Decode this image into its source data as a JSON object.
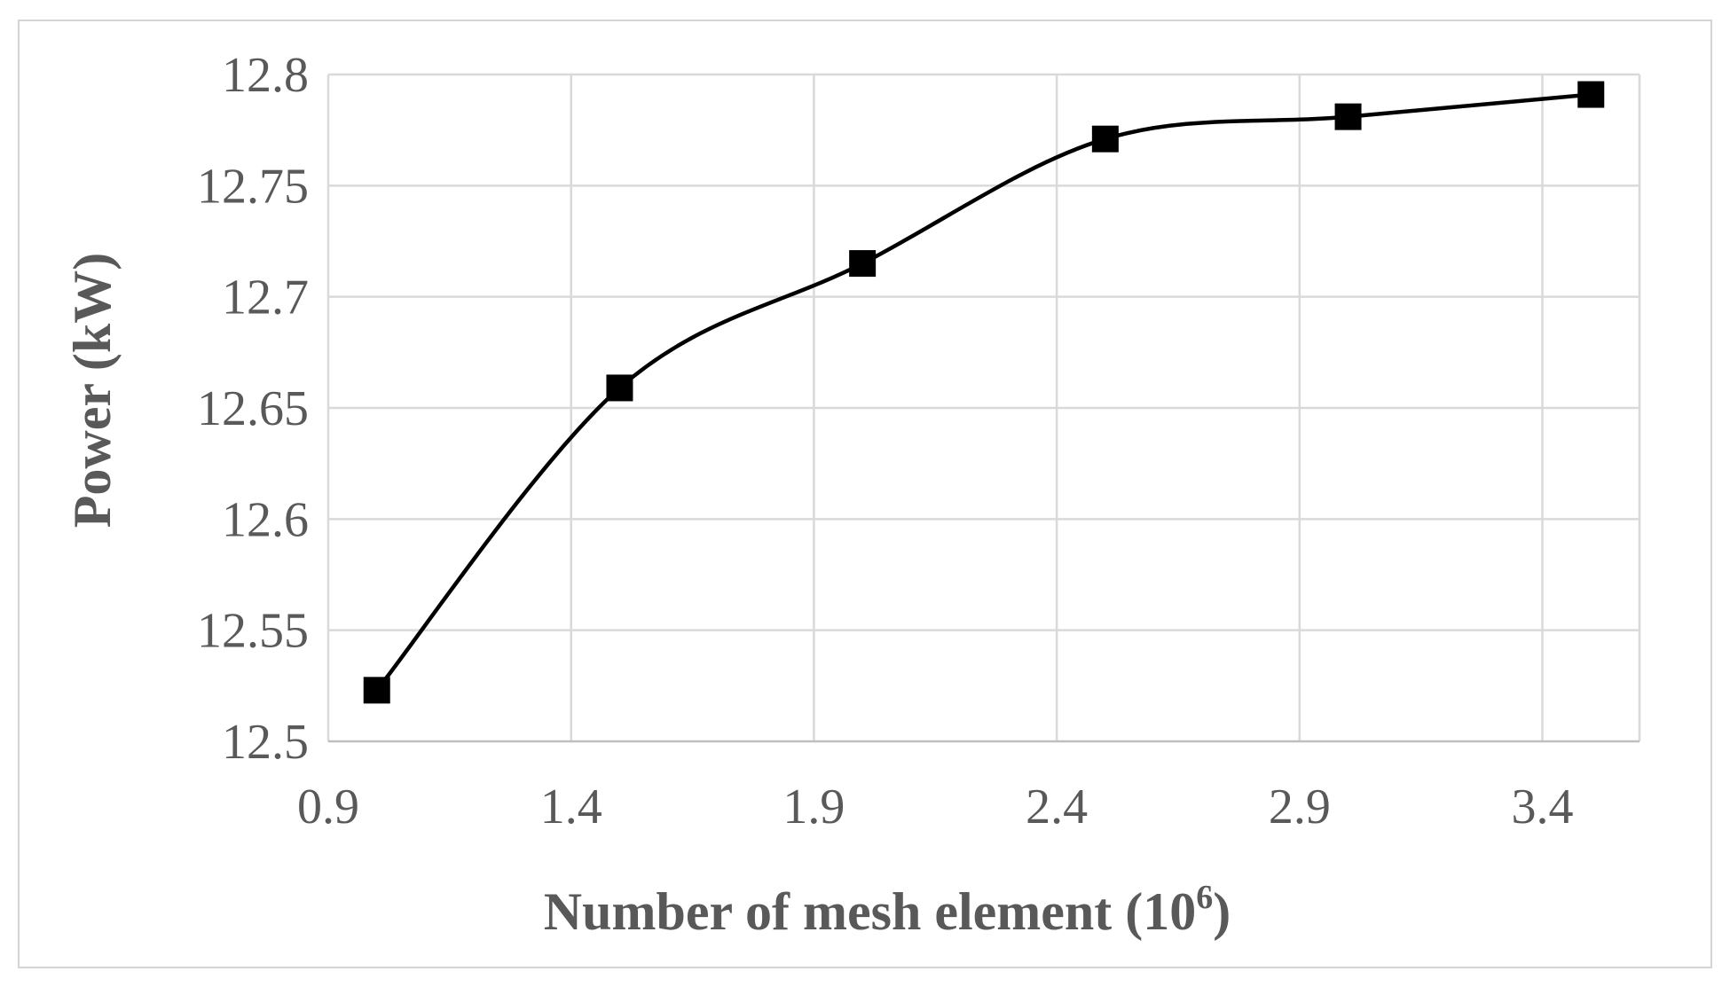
{
  "chart_data": {
    "type": "scatter",
    "xlabel": "Number of mesh element (10",
    "xlabel_sup": "6",
    "xlabel_end": ")",
    "ylabel": "Power (kW)",
    "xlim": [
      0.9,
      3.6
    ],
    "ylim": [
      12.5,
      12.8
    ],
    "x_ticks": [
      0.9,
      1.4,
      1.9,
      2.4,
      2.9,
      3.4
    ],
    "x_tick_labels": [
      "0.9",
      "1.4",
      "1.9",
      "2.4",
      "2.9",
      "3.4"
    ],
    "y_ticks": [
      12.5,
      12.55,
      12.6,
      12.65,
      12.7,
      12.75,
      12.8
    ],
    "y_tick_labels": [
      "12.5",
      "12.55",
      "12.6",
      "12.65",
      "12.7",
      "12.75",
      "12.8"
    ],
    "grid": true,
    "smooth_line": true,
    "marker": "square",
    "series": [
      {
        "x": [
          1.0,
          1.5,
          2.0,
          2.5,
          3.0,
          3.5
        ],
        "values": [
          12.523,
          12.659,
          12.715,
          12.771,
          12.781,
          12.791
        ],
        "color": "#000000"
      }
    ]
  }
}
